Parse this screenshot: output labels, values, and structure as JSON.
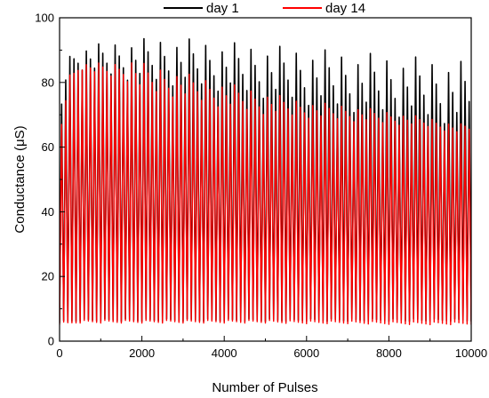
{
  "chart_data": {
    "type": "line",
    "title": "",
    "xlabel": "Number of Pulses",
    "ylabel": "Conductance (μS)",
    "xlim": [
      0,
      10000
    ],
    "ylim": [
      0,
      100
    ],
    "xticks": [
      0,
      2000,
      4000,
      6000,
      8000,
      10000
    ],
    "yticks": [
      0,
      20,
      40,
      60,
      80,
      100
    ],
    "grid": false,
    "legend_position": "top",
    "pulses_per_cycle": 100,
    "series": [
      {
        "name": "day 1",
        "color": "#000000",
        "envelope_x": [
          0,
          200,
          500,
          1000,
          1500,
          2000,
          2700,
          3500,
          4500,
          5500,
          6500,
          7500,
          8500,
          9500,
          10000
        ],
        "peak_max": [
          68,
          88,
          91,
          92,
          93,
          93.5,
          94,
          93,
          92,
          91,
          90,
          89,
          88,
          87,
          86
        ],
        "trough_max": [
          70,
          84,
          84,
          82,
          81,
          80,
          79,
          78,
          76,
          74,
          72,
          70,
          69,
          67,
          66
        ],
        "min": [
          6,
          6,
          6.5,
          6.5,
          6.5,
          6.5,
          6.5,
          6.5,
          6.5,
          6.5,
          6.5,
          6.5,
          6.5,
          6.5,
          6.5
        ]
      },
      {
        "name": "day 14",
        "color": "#ff0000",
        "envelope_x": [
          0,
          200,
          500,
          1000,
          1500,
          1700,
          2000,
          3000,
          4000,
          5000,
          6000,
          7000,
          8000,
          9000,
          9700,
          10000
        ],
        "peak_max": [
          64,
          82,
          86,
          86,
          86,
          88,
          86,
          83,
          80,
          77,
          74,
          73,
          71,
          69,
          67,
          68
        ],
        "trough_max": [
          62,
          78,
          84,
          82,
          81,
          80,
          77,
          75,
          72,
          70,
          69,
          68,
          67,
          66,
          64,
          64
        ],
        "min": [
          5.5,
          5.5,
          6,
          6,
          6,
          6,
          6,
          6,
          6,
          6,
          5.8,
          5.8,
          5.6,
          5.5,
          5.5,
          5.5
        ]
      }
    ]
  }
}
